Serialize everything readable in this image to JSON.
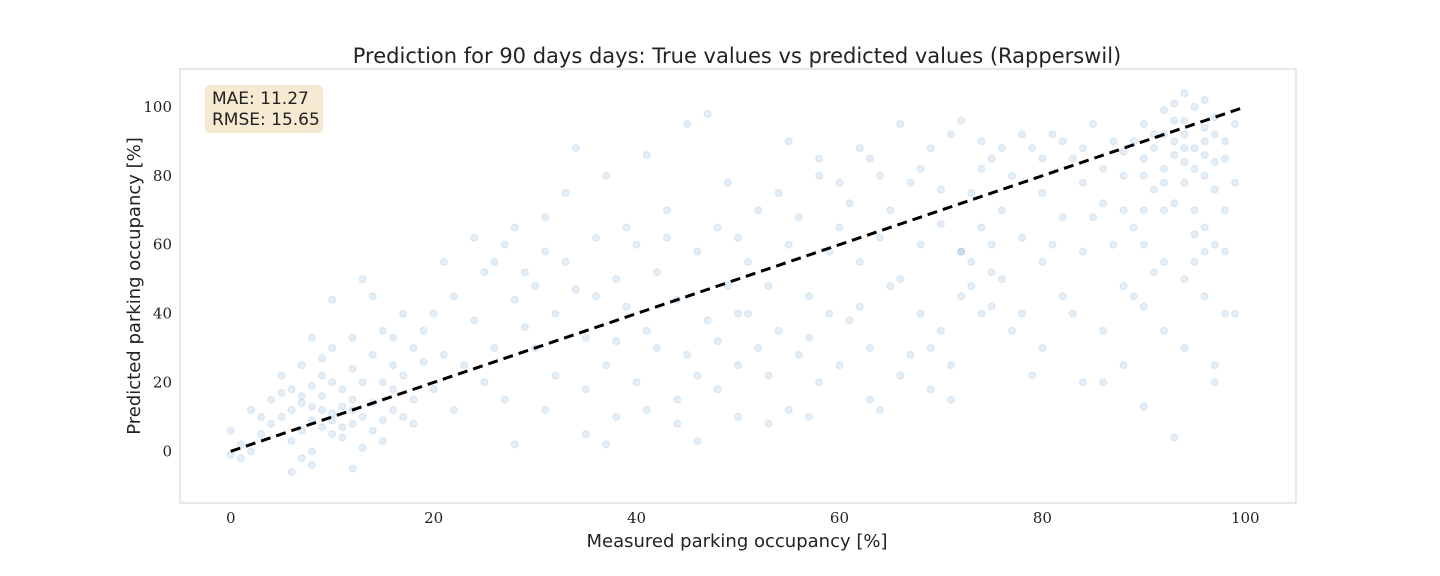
{
  "chart_data": {
    "type": "scatter",
    "title": "Prediction for 90 days days: True values vs predicted values (Rapperswil)",
    "xlabel": "Measured parking occupancy [%]",
    "ylabel": "Predicted parking occupancy [%]",
    "xlim": [
      -5,
      105
    ],
    "ylim": [
      -15,
      111
    ],
    "xticks": [
      0,
      20,
      40,
      60,
      80,
      100
    ],
    "yticks": [
      0,
      20,
      40,
      60,
      80,
      100
    ],
    "grid": false,
    "stats": {
      "mae": "MAE: 11.27",
      "rmse": "RMSE: 15.65"
    },
    "reference_line": {
      "x": [
        0,
        100
      ],
      "y": [
        0,
        100
      ],
      "style": "dashed",
      "color": "#000000"
    },
    "point_color": "#1f77b4",
    "point_alpha": 0.12,
    "series": [
      {
        "points": [
          [
            5,
            10
          ],
          [
            6,
            12
          ],
          [
            7,
            14
          ],
          [
            8,
            9
          ],
          [
            9,
            16
          ],
          [
            10,
            11
          ],
          [
            11,
            13
          ],
          [
            12,
            8
          ],
          [
            7,
            6
          ],
          [
            8,
            19
          ],
          [
            9,
            22
          ],
          [
            10,
            5
          ],
          [
            11,
            18
          ],
          [
            12,
            15
          ],
          [
            13,
            10
          ],
          [
            6,
            3
          ],
          [
            7,
            25
          ],
          [
            8,
            0
          ],
          [
            9,
            12
          ],
          [
            10,
            20
          ],
          [
            4,
            8
          ],
          [
            5,
            17
          ],
          [
            11,
            4
          ],
          [
            12,
            24
          ],
          [
            13,
            1
          ],
          [
            14,
            14
          ],
          [
            15,
            20
          ],
          [
            16,
            18
          ],
          [
            3,
            5
          ],
          [
            2,
            12
          ],
          [
            14,
            28
          ],
          [
            15,
            9
          ],
          [
            9,
            27
          ],
          [
            10,
            30
          ],
          [
            7,
            -2
          ],
          [
            8,
            -4
          ],
          [
            6,
            -6
          ],
          [
            12,
            -5
          ],
          [
            16,
            25
          ],
          [
            17,
            22
          ],
          [
            18,
            30
          ],
          [
            19,
            26
          ],
          [
            20,
            18
          ],
          [
            18,
            15
          ],
          [
            19,
            35
          ],
          [
            21,
            28
          ],
          [
            22,
            12
          ],
          [
            20,
            40
          ],
          [
            17,
            40
          ],
          [
            14,
            45
          ],
          [
            13,
            50
          ],
          [
            10,
            44
          ],
          [
            8,
            33
          ],
          [
            12,
            33
          ],
          [
            15,
            35
          ],
          [
            16,
            33
          ],
          [
            2,
            0
          ],
          [
            1,
            2
          ],
          [
            3,
            10
          ],
          [
            4,
            15
          ],
          [
            5,
            22
          ],
          [
            6,
            18
          ],
          [
            7,
            16
          ],
          [
            8,
            13
          ],
          [
            9,
            7
          ],
          [
            10,
            9
          ],
          [
            11,
            7
          ],
          [
            12,
            12
          ],
          [
            13,
            20
          ],
          [
            14,
            6
          ],
          [
            15,
            3
          ],
          [
            16,
            12
          ],
          [
            17,
            10
          ],
          [
            18,
            8
          ],
          [
            0,
            -1
          ],
          [
            0,
            6
          ],
          [
            1,
            -2
          ],
          [
            22,
            45
          ],
          [
            24,
            38
          ],
          [
            25,
            52
          ],
          [
            26,
            30
          ],
          [
            27,
            60
          ],
          [
            28,
            44
          ],
          [
            29,
            36
          ],
          [
            30,
            48
          ],
          [
            31,
            58
          ],
          [
            32,
            40
          ],
          [
            33,
            55
          ],
          [
            34,
            47
          ],
          [
            35,
            33
          ],
          [
            36,
            62
          ],
          [
            37,
            25
          ],
          [
            38,
            50
          ],
          [
            39,
            42
          ],
          [
            40,
            60
          ],
          [
            41,
            35
          ],
          [
            42,
            52
          ],
          [
            43,
            70
          ],
          [
            44,
            44
          ],
          [
            45,
            28
          ],
          [
            46,
            58
          ],
          [
            47,
            38
          ],
          [
            48,
            65
          ],
          [
            49,
            48
          ],
          [
            50,
            40
          ],
          [
            23,
            25
          ],
          [
            25,
            20
          ],
          [
            27,
            15
          ],
          [
            28,
            65
          ],
          [
            30,
            30
          ],
          [
            32,
            22
          ],
          [
            35,
            18
          ],
          [
            36,
            45
          ],
          [
            38,
            32
          ],
          [
            40,
            20
          ],
          [
            42,
            30
          ],
          [
            44,
            15
          ],
          [
            46,
            22
          ],
          [
            48,
            32
          ],
          [
            50,
            25
          ],
          [
            26,
            55
          ],
          [
            29,
            52
          ],
          [
            31,
            68
          ],
          [
            33,
            75
          ],
          [
            34,
            88
          ],
          [
            37,
            80
          ],
          [
            39,
            65
          ],
          [
            41,
            86
          ],
          [
            43,
            62
          ],
          [
            45,
            95
          ],
          [
            47,
            98
          ],
          [
            49,
            78
          ],
          [
            38,
            10
          ],
          [
            41,
            12
          ],
          [
            44,
            8
          ],
          [
            46,
            3
          ],
          [
            48,
            18
          ],
          [
            50,
            10
          ],
          [
            24,
            62
          ],
          [
            21,
            55
          ],
          [
            35,
            5
          ],
          [
            31,
            12
          ],
          [
            28,
            2
          ],
          [
            37,
            2
          ],
          [
            50,
            62
          ],
          [
            51,
            55
          ],
          [
            52,
            70
          ],
          [
            53,
            48
          ],
          [
            54,
            75
          ],
          [
            55,
            60
          ],
          [
            56,
            68
          ],
          [
            57,
            45
          ],
          [
            58,
            80
          ],
          [
            59,
            58
          ],
          [
            60,
            65
          ],
          [
            61,
            72
          ],
          [
            62,
            55
          ],
          [
            63,
            85
          ],
          [
            64,
            62
          ],
          [
            65,
            70
          ],
          [
            66,
            50
          ],
          [
            67,
            78
          ],
          [
            68,
            60
          ],
          [
            69,
            88
          ],
          [
            70,
            66
          ],
          [
            71,
            92
          ],
          [
            72,
            58
          ],
          [
            73,
            75
          ],
          [
            74,
            82
          ],
          [
            75,
            60
          ],
          [
            51,
            40
          ],
          [
            52,
            30
          ],
          [
            53,
            22
          ],
          [
            54,
            35
          ],
          [
            55,
            12
          ],
          [
            56,
            28
          ],
          [
            57,
            33
          ],
          [
            58,
            20
          ],
          [
            59,
            40
          ],
          [
            60,
            25
          ],
          [
            61,
            38
          ],
          [
            62,
            42
          ],
          [
            63,
            30
          ],
          [
            64,
            12
          ],
          [
            65,
            48
          ],
          [
            66,
            22
          ],
          [
            67,
            28
          ],
          [
            68,
            40
          ],
          [
            69,
            18
          ],
          [
            70,
            35
          ],
          [
            71,
            25
          ],
          [
            72,
            45
          ],
          [
            73,
            55
          ],
          [
            74,
            40
          ],
          [
            55,
            90
          ],
          [
            58,
            85
          ],
          [
            60,
            78
          ],
          [
            62,
            88
          ],
          [
            64,
            80
          ],
          [
            66,
            95
          ],
          [
            68,
            82
          ],
          [
            70,
            76
          ],
          [
            72,
            96
          ],
          [
            74,
            90
          ],
          [
            53,
            8
          ],
          [
            57,
            10
          ],
          [
            63,
            15
          ],
          [
            69,
            30
          ],
          [
            71,
            15
          ],
          [
            75,
            42
          ],
          [
            76,
            70
          ],
          [
            77,
            80
          ],
          [
            78,
            62
          ],
          [
            79,
            88
          ],
          [
            80,
            75
          ],
          [
            81,
            92
          ],
          [
            82,
            68
          ],
          [
            83,
            85
          ],
          [
            84,
            78
          ],
          [
            85,
            95
          ],
          [
            86,
            72
          ],
          [
            87,
            90
          ],
          [
            88,
            80
          ],
          [
            89,
            65
          ],
          [
            90,
            85
          ],
          [
            91,
            92
          ],
          [
            92,
            78
          ],
          [
            93,
            96
          ],
          [
            94,
            88
          ],
          [
            95,
            82
          ],
          [
            96,
            90
          ],
          [
            97,
            84
          ],
          [
            90,
            95
          ],
          [
            91,
            88
          ],
          [
            92,
            99
          ],
          [
            93,
            86
          ],
          [
            94,
            92
          ],
          [
            95,
            100
          ],
          [
            96,
            80
          ],
          [
            97,
            76
          ],
          [
            92,
            82
          ],
          [
            93,
            90
          ],
          [
            94,
            84
          ],
          [
            95,
            88
          ],
          [
            96,
            94
          ],
          [
            91,
            76
          ],
          [
            90,
            80
          ],
          [
            93,
            72
          ],
          [
            95,
            70
          ],
          [
            97,
            92
          ],
          [
            89,
            90
          ],
          [
            88,
            87
          ],
          [
            92,
            92
          ],
          [
            94,
            96
          ],
          [
            96,
            86
          ],
          [
            98,
            85
          ],
          [
            99,
            95
          ],
          [
            94,
            104
          ],
          [
            96,
            102
          ],
          [
            93,
            101
          ],
          [
            76,
            50
          ],
          [
            78,
            40
          ],
          [
            80,
            55
          ],
          [
            82,
            45
          ],
          [
            84,
            58
          ],
          [
            86,
            35
          ],
          [
            88,
            48
          ],
          [
            90,
            60
          ],
          [
            92,
            55
          ],
          [
            94,
            50
          ],
          [
            96,
            65
          ],
          [
            98,
            58
          ],
          [
            80,
            30
          ],
          [
            84,
            20
          ],
          [
            88,
            25
          ],
          [
            90,
            42
          ],
          [
            92,
            35
          ],
          [
            94,
            30
          ],
          [
            96,
            45
          ],
          [
            97,
            60
          ],
          [
            79,
            22
          ],
          [
            86,
            20
          ],
          [
            90,
            13
          ],
          [
            93,
            4
          ],
          [
            97,
            20
          ],
          [
            95,
            55
          ],
          [
            91,
            52
          ],
          [
            89,
            45
          ],
          [
            87,
            60
          ],
          [
            85,
            68
          ],
          [
            83,
            40
          ],
          [
            81,
            60
          ],
          [
            77,
            35
          ],
          [
            98,
            40
          ],
          [
            99,
            40
          ],
          [
            97,
            25
          ],
          [
            98,
            70
          ],
          [
            99,
            78
          ],
          [
            95,
            63
          ],
          [
            96,
            58
          ],
          [
            98,
            90
          ],
          [
            97,
            97
          ],
          [
            92,
            70
          ],
          [
            94,
            78
          ],
          [
            90,
            70
          ],
          [
            88,
            70
          ],
          [
            86,
            82
          ],
          [
            84,
            88
          ],
          [
            82,
            90
          ],
          [
            80,
            85
          ],
          [
            78,
            92
          ],
          [
            76,
            88
          ],
          [
            75,
            85
          ],
          [
            74,
            65
          ],
          [
            75,
            52
          ],
          [
            73,
            48
          ],
          [
            72,
            58
          ]
        ]
      }
    ]
  }
}
